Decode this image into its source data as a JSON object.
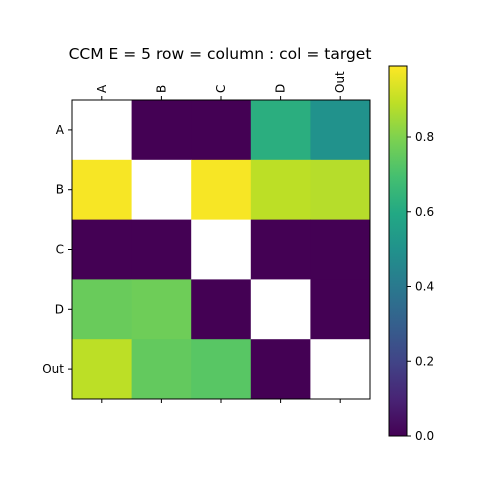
{
  "chart_data": {
    "type": "heatmap",
    "title": "CCM  E = 5    row = column : col = target",
    "rows": [
      "A",
      "B",
      "C",
      "D",
      "Out"
    ],
    "columns": [
      "A",
      "B",
      "C",
      "D",
      "Out"
    ],
    "values": [
      [
        null,
        0.0,
        0.0,
        0.62,
        0.5
      ],
      [
        0.98,
        null,
        0.98,
        0.89,
        0.88
      ],
      [
        0.0,
        0.0,
        null,
        0.0,
        0.0
      ],
      [
        0.76,
        0.77,
        0.0,
        null,
        0.0
      ],
      [
        0.89,
        0.75,
        0.73,
        0.0,
        null
      ]
    ],
    "colormap": "viridis",
    "missing_color": "#ffffff",
    "x_tick_position": "top",
    "x_tick_rotation": 90,
    "grid": false,
    "colorbar": {
      "position": "right",
      "vmin": 0.0,
      "vmax": 0.99,
      "ticks": [
        0.0,
        0.2,
        0.4,
        0.6,
        0.8
      ],
      "tick_labels": [
        "0.0",
        "0.2",
        "0.4",
        "0.6",
        "0.8"
      ]
    }
  }
}
